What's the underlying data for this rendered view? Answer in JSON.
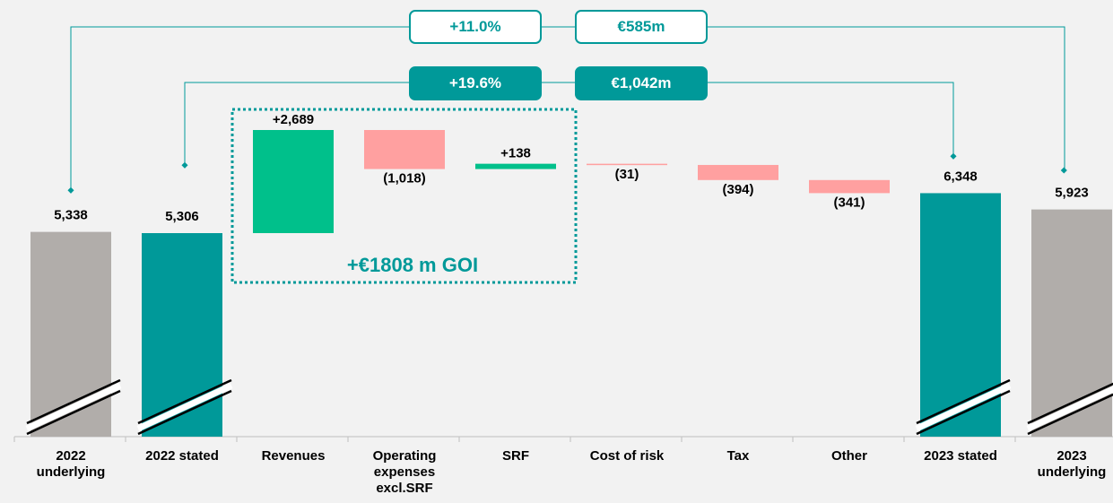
{
  "chart_data": {
    "type": "waterfall",
    "categories": [
      "2022 underlying",
      "2022 stated",
      "Revenues",
      "Operating expenses excl.SRF",
      "SRF",
      "Cost of risk",
      "Tax",
      "Other",
      "2023 stated",
      "2023 underlying"
    ],
    "values": [
      5338,
      5306,
      2689,
      -1018,
      138,
      -31,
      -394,
      -341,
      6348,
      5923
    ],
    "value_labels": [
      "5,338",
      "5,306",
      "+2,689",
      "(1,018)",
      "+138",
      "(31)",
      "(394)",
      "(341)",
      "6,348",
      "5,923"
    ],
    "measure": [
      "total",
      "total",
      "relative",
      "relative",
      "relative",
      "relative",
      "relative",
      "relative",
      "total",
      "total"
    ],
    "colors": [
      "#b1adaa",
      "#009999",
      "#00c08b",
      "#ffa0a0",
      "#00c08b",
      "#ffa0a0",
      "#ffa0a0",
      "#ffa0a0",
      "#009999",
      "#b1adaa"
    ],
    "annotations": {
      "underlying_pct": "+11.0%",
      "underlying_abs": "€585m",
      "stated_pct": "+19.6%",
      "stated_abs": "€1,042m",
      "goi": "+€1808 m GOI"
    }
  }
}
